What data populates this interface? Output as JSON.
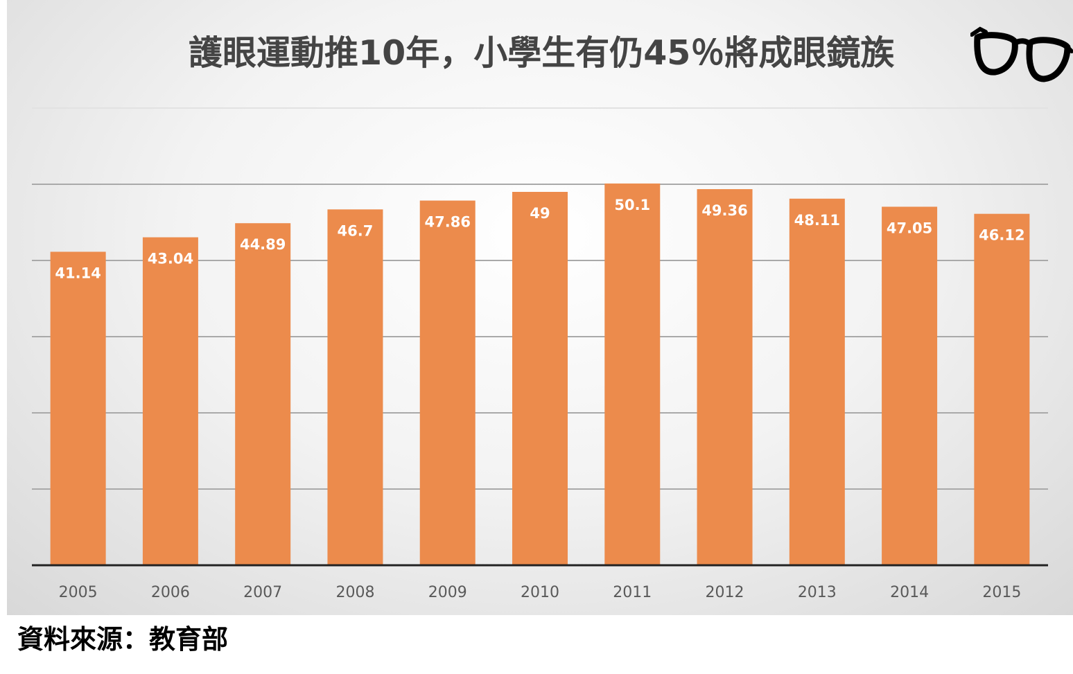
{
  "chart_data": {
    "type": "bar",
    "title": "護眼運動推10年，小學生有仍45％將成眼鏡族",
    "categories": [
      "2005",
      "2006",
      "2007",
      "2008",
      "2009",
      "2010",
      "2011",
      "2012",
      "2013",
      "2014",
      "2015"
    ],
    "values": [
      41.14,
      43.04,
      44.89,
      46.7,
      47.86,
      49,
      50.1,
      49.36,
      48.11,
      47.05,
      46.12
    ],
    "data_labels": [
      "41.14",
      "43.04",
      "44.89",
      "46.7",
      "47.86",
      "49",
      "50.1",
      "49.36",
      "48.11",
      "47.05",
      "46.12"
    ],
    "xlabel": "",
    "ylabel": "",
    "ylim": [
      0,
      60
    ],
    "y_gridlines": [
      10,
      20,
      30,
      40,
      50,
      60
    ],
    "y_tick_labels_visible": false,
    "grid": true,
    "bar_color": "#ec8b4c",
    "label_color": "#ffffff",
    "source": "資料來源：教育部"
  },
  "decorations": {
    "title_icon": "eyeglasses-icon"
  }
}
